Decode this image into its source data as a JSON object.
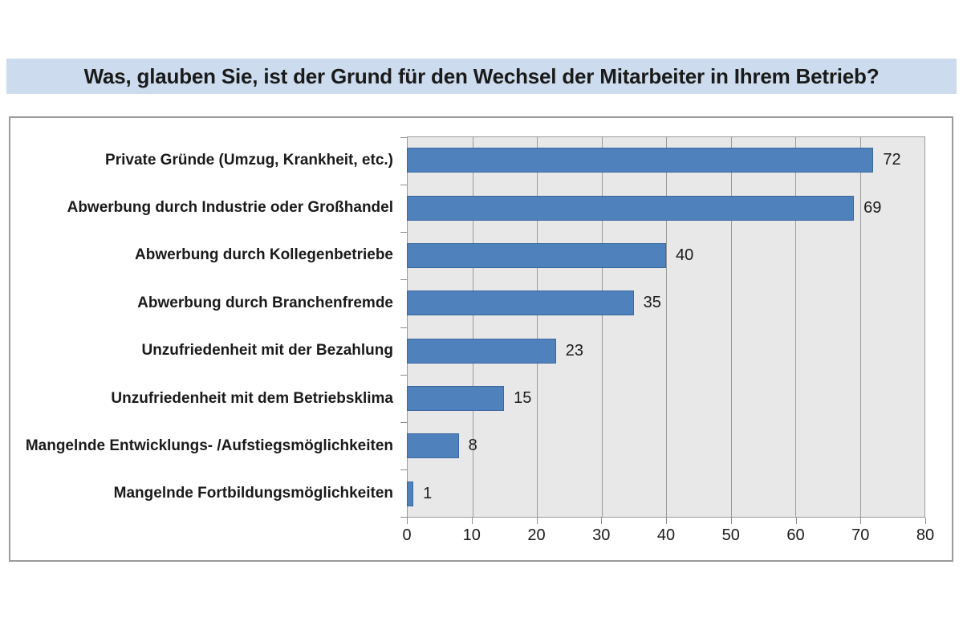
{
  "title": "Was, glauben Sie, ist der Grund für den Wechsel der Mitarbeiter in Ihrem Betrieb?",
  "chart_data": {
    "type": "bar",
    "orientation": "horizontal",
    "title": "Was, glauben Sie, ist der Grund für den Wechsel der Mitarbeiter in Ihrem Betrieb?",
    "categories": [
      "Private Gründe (Umzug, Krankheit, etc.)",
      "Abwerbung durch Industrie oder Großhandel",
      "Abwerbung durch Kollegenbetriebe",
      "Abwerbung durch Branchenfremde",
      "Unzufriedenheit mit der Bezahlung",
      "Unzufriedenheit mit dem Betriebsklima",
      "Mangelnde Entwicklungs- /Aufstiegsmöglichkeiten",
      "Mangelnde Fortbildungsmöglichkeiten"
    ],
    "values": [
      72,
      69,
      40,
      35,
      23,
      15,
      8,
      1
    ],
    "xlabel": "",
    "ylabel": "",
    "xlim": [
      0,
      80
    ],
    "x_ticks": [
      0,
      10,
      20,
      30,
      40,
      50,
      60,
      70,
      80
    ],
    "grid": true,
    "legend": false,
    "value_labels": "outside-end"
  },
  "colors": {
    "title_band_bg": "#ccdcee",
    "title_text": "#1a1a1a",
    "bar_fill": "#4f81bd",
    "bar_border": "#3a68a0",
    "plot_bg": "#e8e8e8",
    "gridline": "#9a9a9a",
    "axis_line": "#8c8c8c",
    "chart_border": "#9a9a9a",
    "axis_text": "#1a1a1a"
  }
}
